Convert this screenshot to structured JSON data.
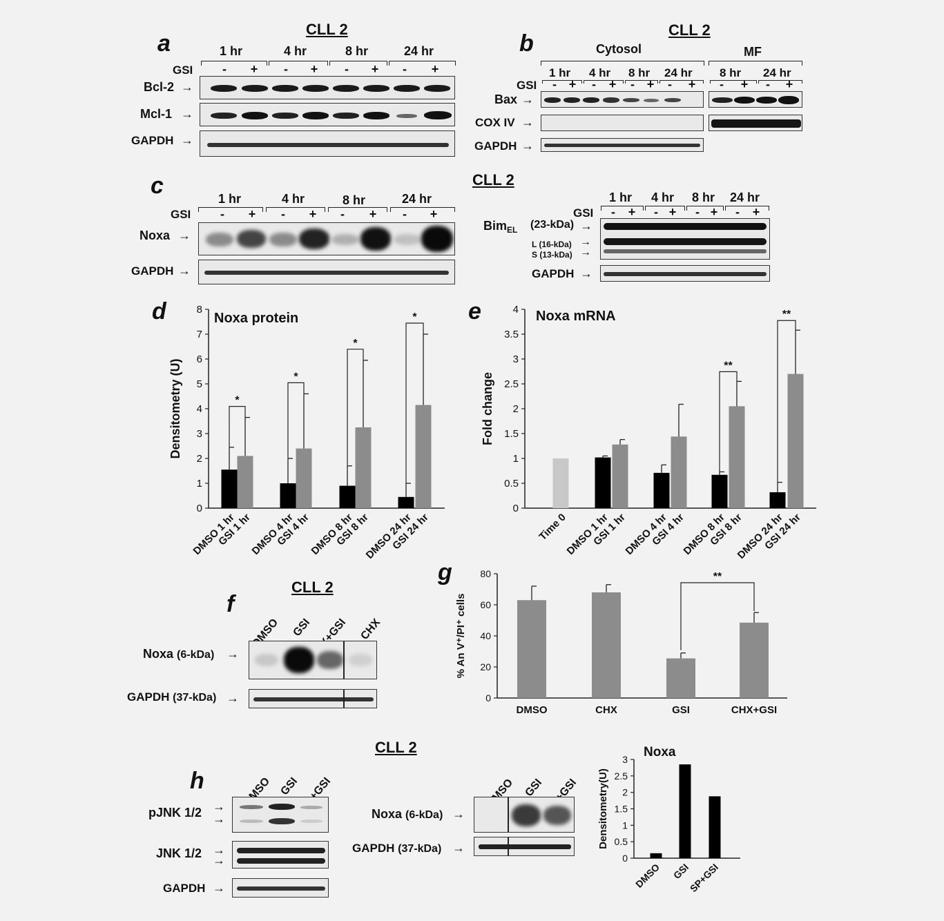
{
  "panel_a": {
    "letter": "a",
    "cell": "CLL 2",
    "times": [
      "1 hr",
      "4 hr",
      "8 hr",
      "24 hr"
    ],
    "gsi_label": "GSI",
    "signs": [
      "-",
      "+"
    ],
    "rows": [
      "Bcl-2",
      "Mcl-1",
      "GAPDH"
    ]
  },
  "panel_b": {
    "letter": "b",
    "cell": "CLL 2",
    "cytosol": "Cytosol",
    "mf": "MF",
    "cyto_times": [
      "1 hr",
      "4 hr",
      "8 hr",
      "24 hr"
    ],
    "mf_times": [
      "8 hr",
      "24 hr"
    ],
    "gsi_label": "GSI",
    "rows": [
      "Bax",
      "COX IV",
      "GAPDH"
    ]
  },
  "panel_c": {
    "letter": "c",
    "cell": "CLL 2",
    "times": [
      "1 hr",
      "4 hr",
      "8 hr",
      "24 hr"
    ],
    "gsi_label": "GSI",
    "rows": [
      "Noxa",
      "GAPDH"
    ],
    "bim_label": "Bim",
    "bim_sub": "EL",
    "bim_el": "(23-kDa)",
    "bim_l": "L (16-kDa)",
    "bim_s": "S (13-kDa)",
    "bim_gapdh": "GAPDH"
  },
  "panel_d": {
    "letter": "d",
    "star": "*",
    "chart_data": {
      "type": "bar",
      "title": "Noxa protein",
      "ylabel": "Densitometry (U)",
      "ylim": [
        0,
        8
      ],
      "yticks": [
        "0",
        "1",
        "2",
        "3",
        "4",
        "5",
        "6",
        "7",
        "8"
      ],
      "categories": [
        "DMSO 1 hr",
        "GSI 1 hr",
        "DMSO 4 hr",
        "GSI 4 hr",
        "DMSO 8 hr",
        "GSI 8 hr",
        "DMSO 24 hr",
        "GSI 24 hr"
      ],
      "values": [
        1.55,
        2.1,
        1.0,
        2.4,
        0.9,
        3.25,
        0.45,
        4.15
      ],
      "errors": [
        0.9,
        1.55,
        1.0,
        2.2,
        0.8,
        2.7,
        0.55,
        2.85
      ],
      "colors": [
        "#000000",
        "#8c8c8c",
        "#000000",
        "#8c8c8c",
        "#000000",
        "#8c8c8c",
        "#000000",
        "#8c8c8c"
      ]
    }
  },
  "panel_e": {
    "letter": "e",
    "star": "**",
    "chart_data": {
      "type": "bar",
      "title": "Noxa mRNA",
      "ylabel": "Fold change",
      "ylim": [
        0,
        4
      ],
      "yticks": [
        "0",
        "0.5",
        "1",
        "1.5",
        "2",
        "2.5",
        "3",
        "3.5",
        "4"
      ],
      "categories": [
        "Time 0",
        "DMSO 1 hr",
        "GSI 1 hr",
        "DMSO 4 hr",
        "GSI 4 hr",
        "DMSO 8 hr",
        "GSI 8 hr",
        "DMSO 24 hr",
        "GSI 24 hr"
      ],
      "values": [
        1.0,
        1.02,
        1.28,
        0.71,
        1.44,
        0.67,
        2.05,
        0.32,
        2.7
      ],
      "errors": [
        0.0,
        0.03,
        0.1,
        0.16,
        0.65,
        0.06,
        0.5,
        0.2,
        0.88
      ],
      "colors": [
        "#c8c8c8",
        "#000000",
        "#8c8c8c",
        "#000000",
        "#8c8c8c",
        "#000000",
        "#8c8c8c",
        "#000000",
        "#8c8c8c"
      ]
    }
  },
  "panel_f": {
    "letter": "f",
    "cell": "CLL 2",
    "lanes": [
      "DMSO",
      "GSI",
      "CHX+GSI",
      "CHX"
    ],
    "noxa": "Noxa",
    "noxa_kda": "(6-kDa)",
    "gapdh": "GAPDH",
    "gapdh_kda": "(37-kDa)"
  },
  "panel_g": {
    "letter": "g",
    "star": "**",
    "chart_data": {
      "type": "bar",
      "ylabel": "% An V⁺/PI⁺ cells",
      "ylim": [
        0,
        80
      ],
      "yticks": [
        "0",
        "20",
        "40",
        "60",
        "80"
      ],
      "categories": [
        "DMSO",
        "CHX",
        "GSI",
        "CHX+GSI"
      ],
      "values": [
        63,
        68,
        25.5,
        48.5
      ],
      "errors": [
        9,
        5,
        3.5,
        6.5
      ],
      "color": "#8c8c8c"
    }
  },
  "panel_h": {
    "letter": "h",
    "cell": "CLL 2",
    "lanes": [
      "DMSO",
      "GSI",
      "SP+GSI"
    ],
    "rows": [
      "pJNK 1/2",
      "JNK 1/2",
      "GAPDH"
    ],
    "noxa": "Noxa",
    "noxa_kda": "(6-kDa)",
    "gapdh": "GAPDH",
    "gapdh_kda": "(37-kDa)",
    "chart_data": {
      "type": "bar",
      "title": "Noxa",
      "ylabel": "Densitometry(U)",
      "ylim": [
        0,
        3
      ],
      "yticks": [
        "0",
        "0.5",
        "1",
        "1.5",
        "2",
        "2.5",
        "3"
      ],
      "categories": [
        "DMSO",
        "GSI",
        "SP+GSI"
      ],
      "values": [
        0.15,
        2.85,
        1.88
      ],
      "color": "#000000"
    }
  }
}
